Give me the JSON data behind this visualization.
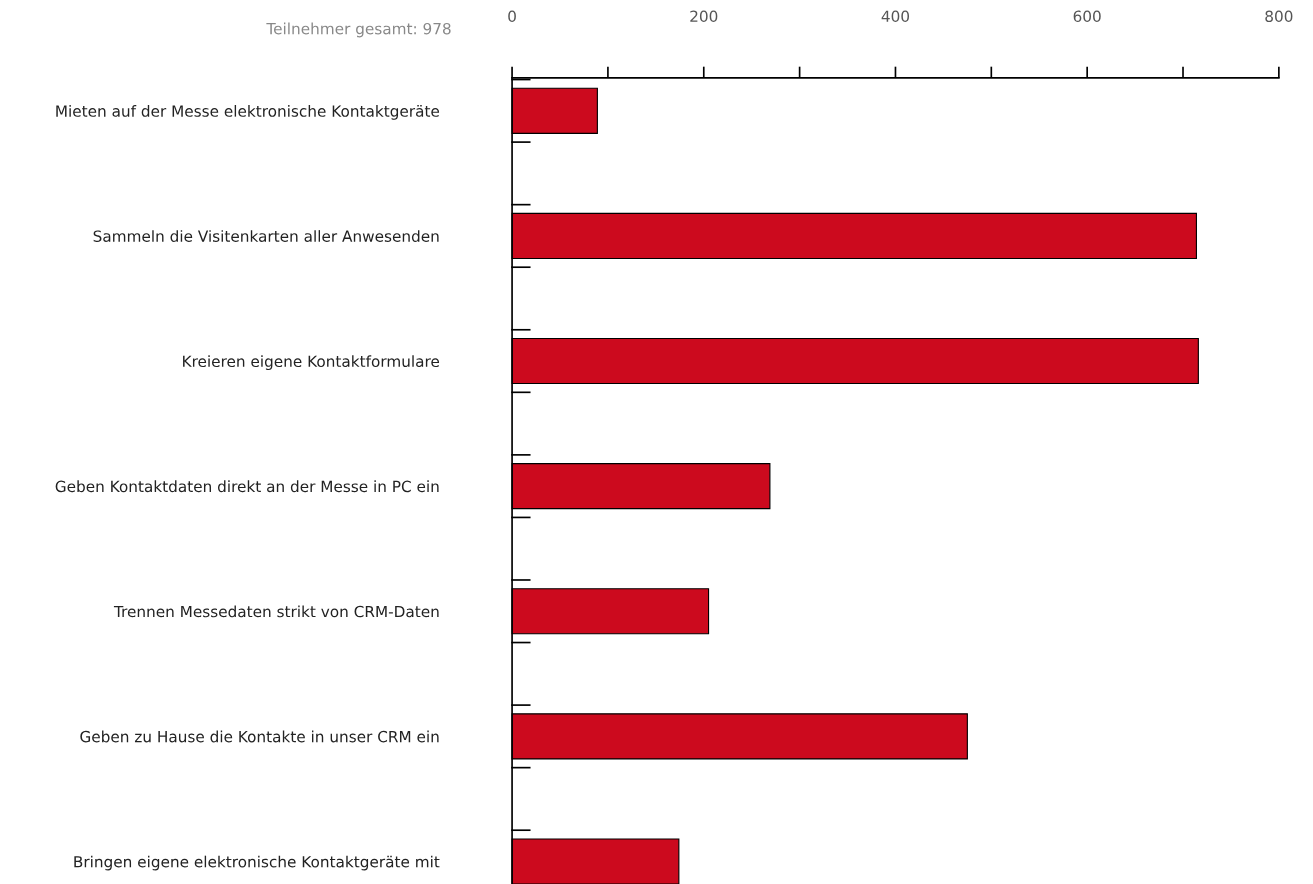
{
  "chart_data": {
    "type": "bar",
    "orientation": "horizontal",
    "categories": [
      "Mieten auf der Messe elektronische Kontaktgeräte",
      "Sammeln die Visitenkarten aller Anwesenden",
      "Kreieren eigene Kontaktformulare",
      "Geben Kontaktdaten direkt an der Messe in PC ein",
      "Trennen Messedaten strikt von CRM-Daten",
      "Geben zu Hause die Kontakte in unser CRM ein",
      "Bringen eigene elektronische Kontaktgeräte mit"
    ],
    "values": [
      89,
      714,
      716,
      269,
      205,
      475,
      174
    ],
    "color": "#cc0a1e",
    "xlim": [
      0,
      800
    ],
    "xticks": [
      0,
      {
        "value": 100,
        "label": null
      },
      200,
      {
        "value": 300,
        "label": null
      },
      400,
      {
        "value": 500,
        "label": null
      },
      600,
      {
        "value": 700,
        "label": null
      },
      800
    ],
    "annotations": [
      "Teilnehmer gesamt: 978"
    ],
    "grid": false,
    "legend": false
  }
}
